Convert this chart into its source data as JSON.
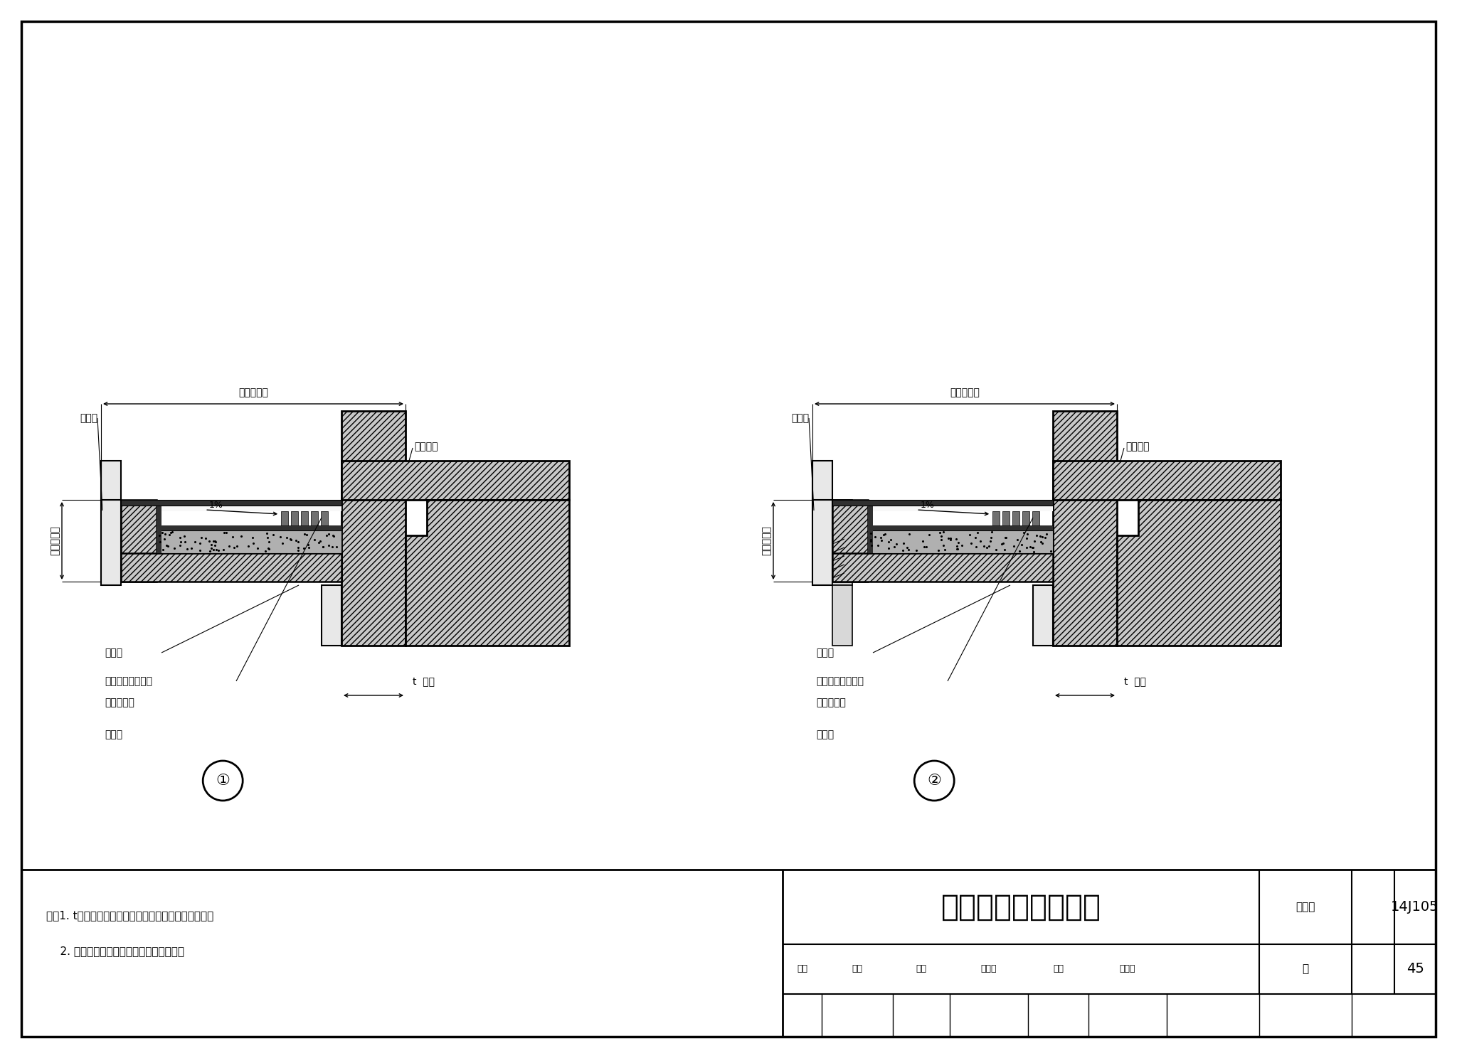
{
  "title": "外保温墙体雨篷构造",
  "atlas_no": "14J105",
  "page": "45",
  "note1": "注：1. t为保温层厚度，可参考本图集热工性能表选用。",
  "note2": "    2. 雨篷、空调搁板防水做法按工程设计。",
  "d1_label": "①",
  "d2_label": "②",
  "label_bwc": "保温层",
  "label_anjgj": "按工程设计",
  "label_lmb": "楼面标高",
  "label_ysq": "雨水口",
  "label_fs": "防水与外饰面做法",
  "label_anjgj2": "按工程设计",
  "label_qh": "墙厚",
  "shenhe": "审核",
  "shenhe_name": "葛坚",
  "jiaodui": "校对",
  "jiaodui_name": "金建明",
  "sheji": "设计",
  "sheji_name": "李文驹",
  "tujihao": "图集号",
  "ye_label": "页",
  "hatch_fc": "#c8c8c8",
  "insul_fc": "#e8e8e8",
  "wm_fc": "#303030",
  "gravel_fc": "#b0b0b0"
}
